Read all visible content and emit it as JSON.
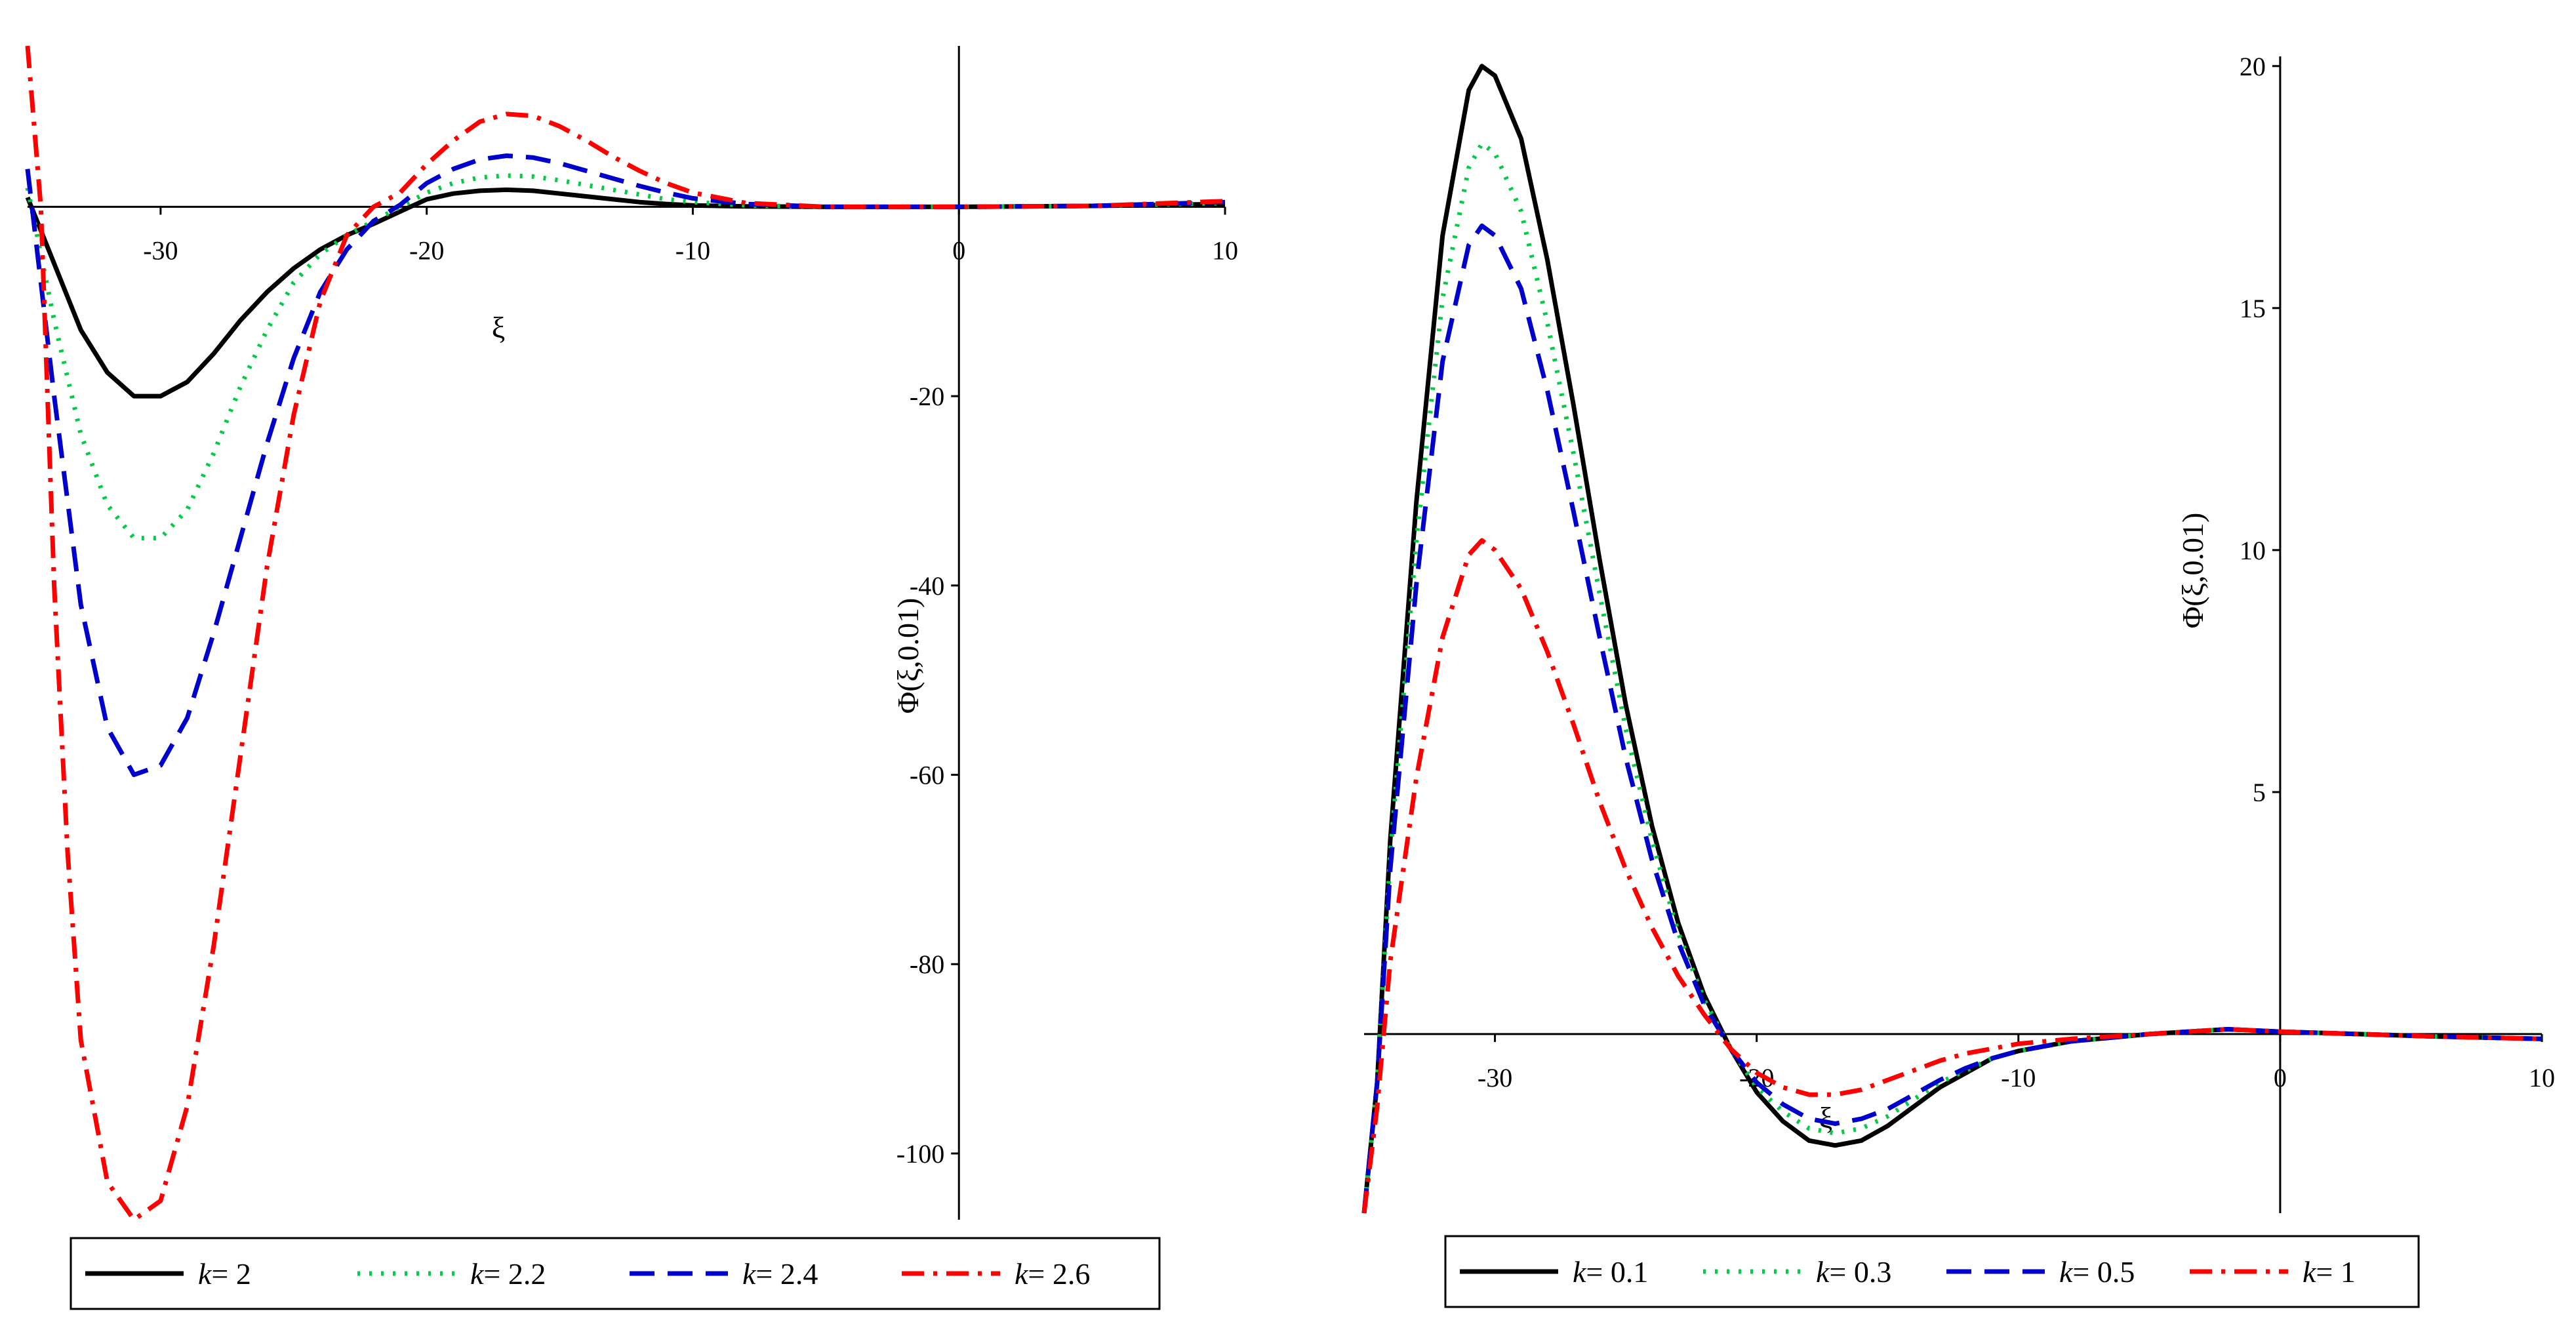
{
  "chart_data": [
    {
      "type": "line",
      "xlabel": "ξ",
      "ylabel": "Φ(ξ,0.01)",
      "xlim": [
        -35,
        10
      ],
      "ylim": [
        -107,
        17
      ],
      "x_ticks": [
        -30,
        -20,
        -10,
        0,
        10
      ],
      "x_tick_labels": [
        "-30",
        "-20",
        "-10",
        "0",
        "10"
      ],
      "y_ticks": [
        -20,
        -40,
        -60,
        -80,
        -100
      ],
      "y_tick_labels": [
        "-20",
        "-40",
        "-60",
        "-80",
        "-100"
      ],
      "legend_position": "bottom",
      "legend_prefix": "k",
      "series": [
        {
          "name": "= 2",
          "color": "#000000",
          "dash": "solid",
          "points": [
            [
              -35,
              1
            ],
            [
              -34,
              -6
            ],
            [
              -33,
              -13
            ],
            [
              -32,
              -17.5
            ],
            [
              -31,
              -20
            ],
            [
              -30,
              -20
            ],
            [
              -29,
              -18.5
            ],
            [
              -28,
              -15.5
            ],
            [
              -27,
              -12
            ],
            [
              -26,
              -9
            ],
            [
              -25,
              -6.5
            ],
            [
              -24,
              -4.5
            ],
            [
              -23,
              -3
            ],
            [
              -22,
              -1.8
            ],
            [
              -21,
              -0.5
            ],
            [
              -20,
              0.8
            ],
            [
              -19,
              1.4
            ],
            [
              -18,
              1.7
            ],
            [
              -17,
              1.8
            ],
            [
              -16,
              1.7
            ],
            [
              -15,
              1.4
            ],
            [
              -14,
              1.1
            ],
            [
              -13,
              0.8
            ],
            [
              -12,
              0.5
            ],
            [
              -11,
              0.3
            ],
            [
              -10,
              0.15
            ],
            [
              -8,
              0.05
            ],
            [
              -5,
              0
            ],
            [
              0,
              0
            ],
            [
              5,
              0.1
            ],
            [
              10,
              0.3
            ]
          ]
        },
        {
          "name": "= 2.2",
          "color": "#00cc44",
          "dash": "dotted",
          "points": [
            [
              -35,
              2
            ],
            [
              -34,
              -12
            ],
            [
              -33,
              -24
            ],
            [
              -32,
              -31.5
            ],
            [
              -31,
              -35
            ],
            [
              -30,
              -35
            ],
            [
              -29,
              -32
            ],
            [
              -28,
              -26
            ],
            [
              -27,
              -19
            ],
            [
              -26,
              -13
            ],
            [
              -25,
              -8
            ],
            [
              -24,
              -5
            ],
            [
              -23,
              -3
            ],
            [
              -22,
              -1.5
            ],
            [
              -21,
              0
            ],
            [
              -20,
              1.5
            ],
            [
              -19,
              2.5
            ],
            [
              -18,
              3.1
            ],
            [
              -17,
              3.3
            ],
            [
              -16,
              3.2
            ],
            [
              -15,
              2.8
            ],
            [
              -14,
              2.3
            ],
            [
              -13,
              1.8
            ],
            [
              -12,
              1.3
            ],
            [
              -11,
              0.8
            ],
            [
              -10,
              0.5
            ],
            [
              -8,
              0.15
            ],
            [
              -5,
              0
            ],
            [
              0,
              0
            ],
            [
              5,
              0.1
            ],
            [
              10,
              0.4
            ]
          ]
        },
        {
          "name": "= 2.4",
          "color": "#0000cc",
          "dash": "dashed",
          "points": [
            [
              -35,
              4
            ],
            [
              -34,
              -20
            ],
            [
              -33,
              -42
            ],
            [
              -32,
              -55
            ],
            [
              -31,
              -60
            ],
            [
              -30,
              -59
            ],
            [
              -29,
              -54
            ],
            [
              -28,
              -45
            ],
            [
              -27,
              -35
            ],
            [
              -26,
              -25
            ],
            [
              -25,
              -16
            ],
            [
              -24,
              -9
            ],
            [
              -23,
              -4.5
            ],
            [
              -22,
              -1.5
            ],
            [
              -21,
              0.2
            ],
            [
              -20,
              2.5
            ],
            [
              -19,
              4
            ],
            [
              -18,
              5
            ],
            [
              -17,
              5.4
            ],
            [
              -16,
              5.2
            ],
            [
              -15,
              4.6
            ],
            [
              -14,
              3.8
            ],
            [
              -13,
              3
            ],
            [
              -12,
              2.2
            ],
            [
              -11,
              1.5
            ],
            [
              -10,
              0.9
            ],
            [
              -8,
              0.3
            ],
            [
              -5,
              0
            ],
            [
              0,
              0
            ],
            [
              5,
              0.1
            ],
            [
              10,
              0.5
            ]
          ]
        },
        {
          "name": "= 2.6",
          "color": "#ff0000",
          "dash": "dashdot",
          "points": [
            [
              -35,
              17
            ],
            [
              -34.5,
              0
            ],
            [
              -34,
              -40
            ],
            [
              -33.5,
              -68
            ],
            [
              -33,
              -88
            ],
            [
              -32,
              -103
            ],
            [
              -31,
              -107
            ],
            [
              -30,
              -105
            ],
            [
              -29,
              -95
            ],
            [
              -28,
              -78
            ],
            [
              -27,
              -58
            ],
            [
              -26,
              -38
            ],
            [
              -25,
              -22
            ],
            [
              -24,
              -10
            ],
            [
              -23,
              -3
            ],
            [
              -22,
              0
            ],
            [
              -21,
              1.5
            ],
            [
              -20,
              4.5
            ],
            [
              -19,
              7
            ],
            [
              -18,
              9
            ],
            [
              -17,
              9.8
            ],
            [
              -16,
              9.6
            ],
            [
              -15,
              8.5
            ],
            [
              -14,
              7
            ],
            [
              -13,
              5.3
            ],
            [
              -12,
              3.8
            ],
            [
              -11,
              2.5
            ],
            [
              -10,
              1.5
            ],
            [
              -8,
              0.4
            ],
            [
              -5,
              0
            ],
            [
              0,
              0
            ],
            [
              5,
              0.1
            ],
            [
              10,
              0.6
            ]
          ]
        }
      ]
    },
    {
      "type": "line",
      "xlabel": "ξ",
      "ylabel": "Φ(ξ,0.01)",
      "xlim": [
        -35,
        10
      ],
      "ylim": [
        -3.7,
        20.2
      ],
      "x_ticks": [
        -30,
        -20,
        -10,
        0,
        10
      ],
      "x_tick_labels": [
        "-30",
        "-20",
        "-10",
        "0",
        "10"
      ],
      "y_ticks": [
        5,
        10,
        15,
        20
      ],
      "y_tick_labels": [
        "5",
        "10",
        "15",
        "20"
      ],
      "legend_position": "bottom",
      "legend_prefix": "k",
      "series": [
        {
          "name": "= 0.1",
          "color": "#000000",
          "dash": "solid",
          "points": [
            [
              -35,
              -3.7
            ],
            [
              -34.5,
              -1
            ],
            [
              -34,
              4
            ],
            [
              -33,
              11
            ],
            [
              -32,
              16.5
            ],
            [
              -31,
              19.5
            ],
            [
              -30.5,
              20
            ],
            [
              -30,
              19.8
            ],
            [
              -29,
              18.5
            ],
            [
              -28,
              16
            ],
            [
              -27,
              13
            ],
            [
              -26,
              9.8
            ],
            [
              -25,
              6.8
            ],
            [
              -24,
              4.3
            ],
            [
              -23,
              2.3
            ],
            [
              -22,
              0.8
            ],
            [
              -21,
              -0.3
            ],
            [
              -20,
              -1.2
            ],
            [
              -19,
              -1.8
            ],
            [
              -18,
              -2.2
            ],
            [
              -17,
              -2.3
            ],
            [
              -16,
              -2.2
            ],
            [
              -15,
              -1.9
            ],
            [
              -14,
              -1.5
            ],
            [
              -13,
              -1.1
            ],
            [
              -12,
              -0.8
            ],
            [
              -11,
              -0.5
            ],
            [
              -10,
              -0.35
            ],
            [
              -8,
              -0.15
            ],
            [
              -5,
              0
            ],
            [
              -2,
              0.1
            ],
            [
              0,
              0.05
            ],
            [
              3,
              0
            ],
            [
              6,
              -0.05
            ],
            [
              10,
              -0.1
            ]
          ]
        },
        {
          "name": "= 0.3",
          "color": "#00cc44",
          "dash": "dotted",
          "points": [
            [
              -35,
              -3.7
            ],
            [
              -34.5,
              -1
            ],
            [
              -34,
              3.7
            ],
            [
              -33,
              10.2
            ],
            [
              -32,
              15.2
            ],
            [
              -31,
              17.9
            ],
            [
              -30.5,
              18.4
            ],
            [
              -30,
              18.2
            ],
            [
              -29,
              17
            ],
            [
              -28,
              14.7
            ],
            [
              -27,
              12
            ],
            [
              -26,
              9.1
            ],
            [
              -25,
              6.3
            ],
            [
              -24,
              4
            ],
            [
              -23,
              2.1
            ],
            [
              -22,
              0.7
            ],
            [
              -21,
              -0.3
            ],
            [
              -20,
              -1.1
            ],
            [
              -19,
              -1.6
            ],
            [
              -18,
              -1.95
            ],
            [
              -17,
              -2.05
            ],
            [
              -16,
              -1.95
            ],
            [
              -15,
              -1.7
            ],
            [
              -14,
              -1.35
            ],
            [
              -13,
              -1
            ],
            [
              -12,
              -0.75
            ],
            [
              -11,
              -0.5
            ],
            [
              -10,
              -0.35
            ],
            [
              -8,
              -0.15
            ],
            [
              -5,
              0
            ],
            [
              -2,
              0.1
            ],
            [
              0,
              0.05
            ],
            [
              3,
              0
            ],
            [
              6,
              -0.05
            ],
            [
              10,
              -0.1
            ]
          ]
        },
        {
          "name": "= 0.5",
          "color": "#0000cc",
          "dash": "dashed",
          "points": [
            [
              -35,
              -3.7
            ],
            [
              -34.5,
              -1
            ],
            [
              -34,
              3.4
            ],
            [
              -33,
              9.3
            ],
            [
              -32,
              13.9
            ],
            [
              -31,
              16.3
            ],
            [
              -30.5,
              16.7
            ],
            [
              -30,
              16.5
            ],
            [
              -29,
              15.4
            ],
            [
              -28,
              13.3
            ],
            [
              -27,
              10.8
            ],
            [
              -26,
              8.2
            ],
            [
              -25,
              5.7
            ],
            [
              -24,
              3.6
            ],
            [
              -23,
              1.9
            ],
            [
              -22,
              0.6
            ],
            [
              -21,
              -0.3
            ],
            [
              -20,
              -1
            ],
            [
              -19,
              -1.45
            ],
            [
              -18,
              -1.75
            ],
            [
              -17,
              -1.85
            ],
            [
              -16,
              -1.75
            ],
            [
              -15,
              -1.55
            ],
            [
              -14,
              -1.25
            ],
            [
              -13,
              -0.95
            ],
            [
              -12,
              -0.7
            ],
            [
              -11,
              -0.5
            ],
            [
              -10,
              -0.35
            ],
            [
              -8,
              -0.15
            ],
            [
              -5,
              0
            ],
            [
              -2,
              0.1
            ],
            [
              0,
              0.05
            ],
            [
              3,
              0
            ],
            [
              6,
              -0.05
            ],
            [
              10,
              -0.1
            ]
          ]
        },
        {
          "name": "= 1",
          "color": "#ff0000",
          "dash": "dashdot",
          "points": [
            [
              -35,
              -3.7
            ],
            [
              -34.5,
              -1.5
            ],
            [
              -34,
              1.5
            ],
            [
              -33,
              5.3
            ],
            [
              -32,
              8.2
            ],
            [
              -31,
              9.9
            ],
            [
              -30.5,
              10.2
            ],
            [
              -30,
              10
            ],
            [
              -29,
              9.2
            ],
            [
              -28,
              7.9
            ],
            [
              -27,
              6.4
            ],
            [
              -26,
              4.8
            ],
            [
              -25,
              3.4
            ],
            [
              -24,
              2.2
            ],
            [
              -23,
              1.2
            ],
            [
              -22,
              0.4
            ],
            [
              -21,
              -0.3
            ],
            [
              -20,
              -0.8
            ],
            [
              -19,
              -1.1
            ],
            [
              -18,
              -1.25
            ],
            [
              -17,
              -1.25
            ],
            [
              -16,
              -1.15
            ],
            [
              -15,
              -0.95
            ],
            [
              -14,
              -0.75
            ],
            [
              -13,
              -0.55
            ],
            [
              -12,
              -0.4
            ],
            [
              -11,
              -0.3
            ],
            [
              -10,
              -0.2
            ],
            [
              -8,
              -0.1
            ],
            [
              -5,
              0
            ],
            [
              -2,
              0.1
            ],
            [
              0,
              0.05
            ],
            [
              3,
              0
            ],
            [
              6,
              -0.05
            ],
            [
              10,
              -0.1
            ]
          ]
        }
      ]
    }
  ]
}
